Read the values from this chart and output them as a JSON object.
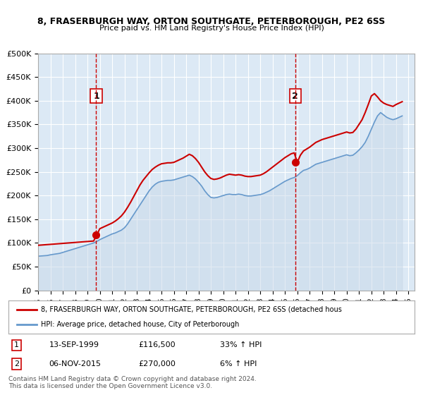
{
  "title1": "8, FRASERBURGH WAY, ORTON SOUTHGATE, PETERBOROUGH, PE2 6SS",
  "title2": "Price paid vs. HM Land Registry's House Price Index (HPI)",
  "xlabel": "",
  "ylabel": "",
  "background_color": "#ffffff",
  "plot_bg_color": "#dce9f5",
  "grid_color": "#ffffff",
  "ylim": [
    0,
    500000
  ],
  "yticks": [
    0,
    50000,
    100000,
    150000,
    200000,
    250000,
    300000,
    350000,
    400000,
    450000,
    500000
  ],
  "ytick_labels": [
    "£0",
    "£50K",
    "£100K",
    "£150K",
    "£200K",
    "£250K",
    "£300K",
    "£350K",
    "£400K",
    "£450K",
    "£500K"
  ],
  "xlim_start": 1995.0,
  "xlim_end": 2025.5,
  "xticks": [
    1995,
    1996,
    1997,
    1998,
    1999,
    2000,
    2001,
    2002,
    2003,
    2004,
    2005,
    2006,
    2007,
    2008,
    2009,
    2010,
    2011,
    2012,
    2013,
    2014,
    2015,
    2016,
    2017,
    2018,
    2019,
    2020,
    2021,
    2022,
    2023,
    2024,
    2025
  ],
  "transaction1_x": 1999.71,
  "transaction1_y": 116500,
  "transaction1_label": "1",
  "transaction1_date": "13-SEP-1999",
  "transaction1_price": "£116,500",
  "transaction1_hpi": "33% ↑ HPI",
  "transaction2_x": 2015.84,
  "transaction2_y": 270000,
  "transaction2_label": "2",
  "transaction2_date": "06-NOV-2015",
  "transaction2_price": "£270,000",
  "transaction2_hpi": "6% ↑ HPI",
  "red_line_color": "#cc0000",
  "blue_line_color": "#6699cc",
  "fill_color": "#c8d8e8",
  "vline_color": "#cc0000",
  "legend_label1": "8, FRASERBURGH WAY, ORTON SOUTHGATE, PETERBOROUGH, PE2 6SS (detached hous",
  "legend_label2": "HPI: Average price, detached house, City of Peterborough",
  "footer1": "Contains HM Land Registry data © Crown copyright and database right 2024.",
  "footer2": "This data is licensed under the Open Government Licence v3.0.",
  "hpi_data": {
    "years": [
      1995.0,
      1995.25,
      1995.5,
      1995.75,
      1996.0,
      1996.25,
      1996.5,
      1996.75,
      1997.0,
      1997.25,
      1997.5,
      1997.75,
      1998.0,
      1998.25,
      1998.5,
      1998.75,
      1999.0,
      1999.25,
      1999.5,
      1999.75,
      2000.0,
      2000.25,
      2000.5,
      2000.75,
      2001.0,
      2001.25,
      2001.5,
      2001.75,
      2002.0,
      2002.25,
      2002.5,
      2002.75,
      2003.0,
      2003.25,
      2003.5,
      2003.75,
      2004.0,
      2004.25,
      2004.5,
      2004.75,
      2005.0,
      2005.25,
      2005.5,
      2005.75,
      2006.0,
      2006.25,
      2006.5,
      2006.75,
      2007.0,
      2007.25,
      2007.5,
      2007.75,
      2008.0,
      2008.25,
      2008.5,
      2008.75,
      2009.0,
      2009.25,
      2009.5,
      2009.75,
      2010.0,
      2010.25,
      2010.5,
      2010.75,
      2011.0,
      2011.25,
      2011.5,
      2011.75,
      2012.0,
      2012.25,
      2012.5,
      2012.75,
      2013.0,
      2013.25,
      2013.5,
      2013.75,
      2014.0,
      2014.25,
      2014.5,
      2014.75,
      2015.0,
      2015.25,
      2015.5,
      2015.75,
      2016.0,
      2016.25,
      2016.5,
      2016.75,
      2017.0,
      2017.25,
      2017.5,
      2017.75,
      2018.0,
      2018.25,
      2018.5,
      2018.75,
      2019.0,
      2019.25,
      2019.5,
      2019.75,
      2020.0,
      2020.25,
      2020.5,
      2020.75,
      2021.0,
      2021.25,
      2021.5,
      2021.75,
      2022.0,
      2022.25,
      2022.5,
      2022.75,
      2023.0,
      2023.25,
      2023.5,
      2023.75,
      2024.0,
      2024.25,
      2024.5
    ],
    "values": [
      72000,
      72500,
      73000,
      73500,
      75000,
      76000,
      77000,
      78000,
      80000,
      82000,
      84000,
      86000,
      88000,
      90000,
      92000,
      94000,
      96000,
      98000,
      100000,
      103000,
      107000,
      110000,
      113000,
      116000,
      119000,
      121000,
      124000,
      127000,
      132000,
      140000,
      150000,
      160000,
      170000,
      180000,
      190000,
      200000,
      210000,
      218000,
      224000,
      228000,
      230000,
      231000,
      232000,
      232000,
      233000,
      235000,
      237000,
      239000,
      241000,
      243000,
      240000,
      235000,
      228000,
      220000,
      210000,
      202000,
      196000,
      195000,
      196000,
      198000,
      200000,
      202000,
      203000,
      202000,
      202000,
      203000,
      202000,
      200000,
      199000,
      199000,
      200000,
      201000,
      202000,
      204000,
      207000,
      210000,
      214000,
      218000,
      222000,
      226000,
      230000,
      233000,
      236000,
      238000,
      242000,
      248000,
      253000,
      255000,
      258000,
      262000,
      266000,
      268000,
      270000,
      272000,
      274000,
      276000,
      278000,
      280000,
      282000,
      284000,
      286000,
      284000,
      285000,
      290000,
      296000,
      303000,
      312000,
      325000,
      340000,
      355000,
      368000,
      375000,
      370000,
      365000,
      362000,
      360000,
      362000,
      365000,
      368000
    ]
  },
  "price_data": {
    "years": [
      1995.0,
      1995.25,
      1995.5,
      1995.75,
      1996.0,
      1996.25,
      1996.5,
      1996.75,
      1997.0,
      1997.25,
      1997.5,
      1997.75,
      1998.0,
      1998.25,
      1998.5,
      1998.75,
      1999.0,
      1999.25,
      1999.5,
      1999.75,
      2000.0,
      2000.25,
      2000.5,
      2000.75,
      2001.0,
      2001.25,
      2001.5,
      2001.75,
      2002.0,
      2002.25,
      2002.5,
      2002.75,
      2003.0,
      2003.25,
      2003.5,
      2003.75,
      2004.0,
      2004.25,
      2004.5,
      2004.75,
      2005.0,
      2005.25,
      2005.5,
      2005.75,
      2006.0,
      2006.25,
      2006.5,
      2006.75,
      2007.0,
      2007.25,
      2007.5,
      2007.75,
      2008.0,
      2008.25,
      2008.5,
      2008.75,
      2009.0,
      2009.25,
      2009.5,
      2009.75,
      2010.0,
      2010.25,
      2010.5,
      2010.75,
      2011.0,
      2011.25,
      2011.5,
      2011.75,
      2012.0,
      2012.25,
      2012.5,
      2012.75,
      2013.0,
      2013.25,
      2013.5,
      2013.75,
      2014.0,
      2014.25,
      2014.5,
      2014.75,
      2015.0,
      2015.25,
      2015.5,
      2015.75,
      2016.0,
      2016.25,
      2016.5,
      2016.75,
      2017.0,
      2017.25,
      2017.5,
      2017.75,
      2018.0,
      2018.25,
      2018.5,
      2018.75,
      2019.0,
      2019.25,
      2019.5,
      2019.75,
      2020.0,
      2020.25,
      2020.5,
      2020.75,
      2021.0,
      2021.25,
      2021.5,
      2021.75,
      2022.0,
      2022.25,
      2022.5,
      2022.75,
      2023.0,
      2023.25,
      2023.5,
      2023.75,
      2024.0,
      2024.25,
      2024.5
    ],
    "values": [
      95000,
      95500,
      96000,
      96500,
      97000,
      97500,
      98000,
      98500,
      99000,
      99500,
      100000,
      100500,
      101000,
      101500,
      102000,
      102500,
      103000,
      103500,
      104000,
      116500,
      130000,
      133000,
      136000,
      139000,
      142000,
      146000,
      151000,
      157000,
      165000,
      175000,
      186000,
      198000,
      210000,
      222000,
      232000,
      240000,
      248000,
      255000,
      260000,
      264000,
      267000,
      268000,
      269000,
      269000,
      270000,
      273000,
      276000,
      279000,
      283000,
      287000,
      284000,
      278000,
      270000,
      260000,
      250000,
      242000,
      236000,
      234000,
      235000,
      237000,
      240000,
      243000,
      245000,
      244000,
      243000,
      244000,
      243000,
      241000,
      240000,
      240000,
      241000,
      242000,
      243000,
      246000,
      250000,
      255000,
      260000,
      265000,
      270000,
      275000,
      280000,
      284000,
      288000,
      290000,
      270000,
      285000,
      294000,
      298000,
      302000,
      307000,
      312000,
      315000,
      318000,
      320000,
      322000,
      324000,
      326000,
      328000,
      330000,
      332000,
      334000,
      332000,
      333000,
      340000,
      350000,
      360000,
      375000,
      392000,
      410000,
      415000,
      408000,
      400000,
      395000,
      392000,
      390000,
      388000,
      392000,
      395000,
      398000
    ]
  }
}
